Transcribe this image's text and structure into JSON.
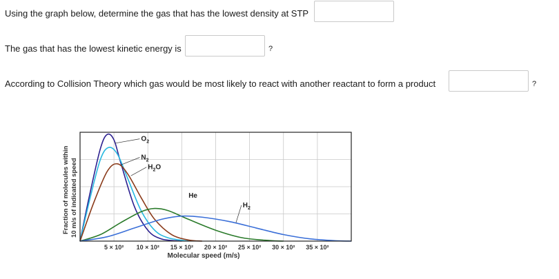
{
  "questions": [
    {
      "text": "Using the graph below, determine the gas that has the lowest density at STP",
      "answer": "",
      "suffix": ""
    },
    {
      "text": "The gas that has the lowest kinetic energy is",
      "answer": "",
      "suffix": "?"
    },
    {
      "text": "According to Collision Theory which gas would be most likely to react with another reactant to form a product",
      "answer": "",
      "suffix": "?"
    }
  ],
  "colors": {
    "O2": "#2b1f8f",
    "N2": "#27b8e0",
    "H2O": "#8a3a1a",
    "He": "#2a7a2a",
    "H2": "#3a6fd8"
  },
  "chart_data": {
    "type": "line",
    "ylabel_line1": "Fraction of molecules within",
    "ylabel_line2": "10 m/s of indicated speed",
    "xlabel": "Molecular speed (m/s)",
    "x_ticks": [
      "5 × 10²",
      "10 × 10²",
      "15 × 10²",
      "20 × 10²",
      "25 × 10²",
      "30 × 10²",
      "35 × 10²"
    ],
    "x_tick_values": [
      500,
      1000,
      1500,
      2000,
      2500,
      3000,
      3500
    ],
    "xlim": [
      0,
      4000
    ],
    "ylim": [
      0,
      1
    ],
    "series": [
      {
        "name": "O",
        "sub": "2",
        "key": "O2",
        "values": [
          [
            0,
            0
          ],
          [
            150,
            0.45
          ],
          [
            300,
            0.85
          ],
          [
            400,
            0.98
          ],
          [
            500,
            0.93
          ],
          [
            600,
            0.72
          ],
          [
            800,
            0.32
          ],
          [
            1000,
            0.1
          ],
          [
            1200,
            0.02
          ],
          [
            1500,
            0
          ]
        ]
      },
      {
        "name": "N",
        "sub": "2",
        "key": "N2",
        "values": [
          [
            0,
            0
          ],
          [
            150,
            0.4
          ],
          [
            300,
            0.75
          ],
          [
            420,
            0.86
          ],
          [
            550,
            0.8
          ],
          [
            700,
            0.58
          ],
          [
            900,
            0.28
          ],
          [
            1100,
            0.1
          ],
          [
            1300,
            0.03
          ],
          [
            1600,
            0
          ]
        ]
      },
      {
        "name": "H",
        "sub": "2",
        "suffix": "O",
        "key": "H2O",
        "values": [
          [
            0,
            0
          ],
          [
            200,
            0.35
          ],
          [
            400,
            0.64
          ],
          [
            550,
            0.71
          ],
          [
            700,
            0.62
          ],
          [
            900,
            0.4
          ],
          [
            1100,
            0.2
          ],
          [
            1350,
            0.06
          ],
          [
            1600,
            0.01
          ],
          [
            1800,
            0
          ]
        ]
      },
      {
        "name": "He",
        "key": "He",
        "values": [
          [
            0,
            0
          ],
          [
            300,
            0.06
          ],
          [
            600,
            0.17
          ],
          [
            900,
            0.27
          ],
          [
            1100,
            0.3
          ],
          [
            1300,
            0.28
          ],
          [
            1600,
            0.2
          ],
          [
            2000,
            0.1
          ],
          [
            2400,
            0.03
          ],
          [
            2800,
            0.005
          ],
          [
            3000,
            0
          ]
        ]
      },
      {
        "name": "H",
        "sub": "2",
        "key": "H2",
        "values": [
          [
            0,
            0
          ],
          [
            400,
            0.04
          ],
          [
            800,
            0.12
          ],
          [
            1200,
            0.2
          ],
          [
            1500,
            0.23
          ],
          [
            1800,
            0.22
          ],
          [
            2200,
            0.18
          ],
          [
            2600,
            0.12
          ],
          [
            3000,
            0.06
          ],
          [
            3400,
            0.02
          ],
          [
            3800,
            0.003
          ],
          [
            4000,
            0
          ]
        ]
      }
    ]
  }
}
